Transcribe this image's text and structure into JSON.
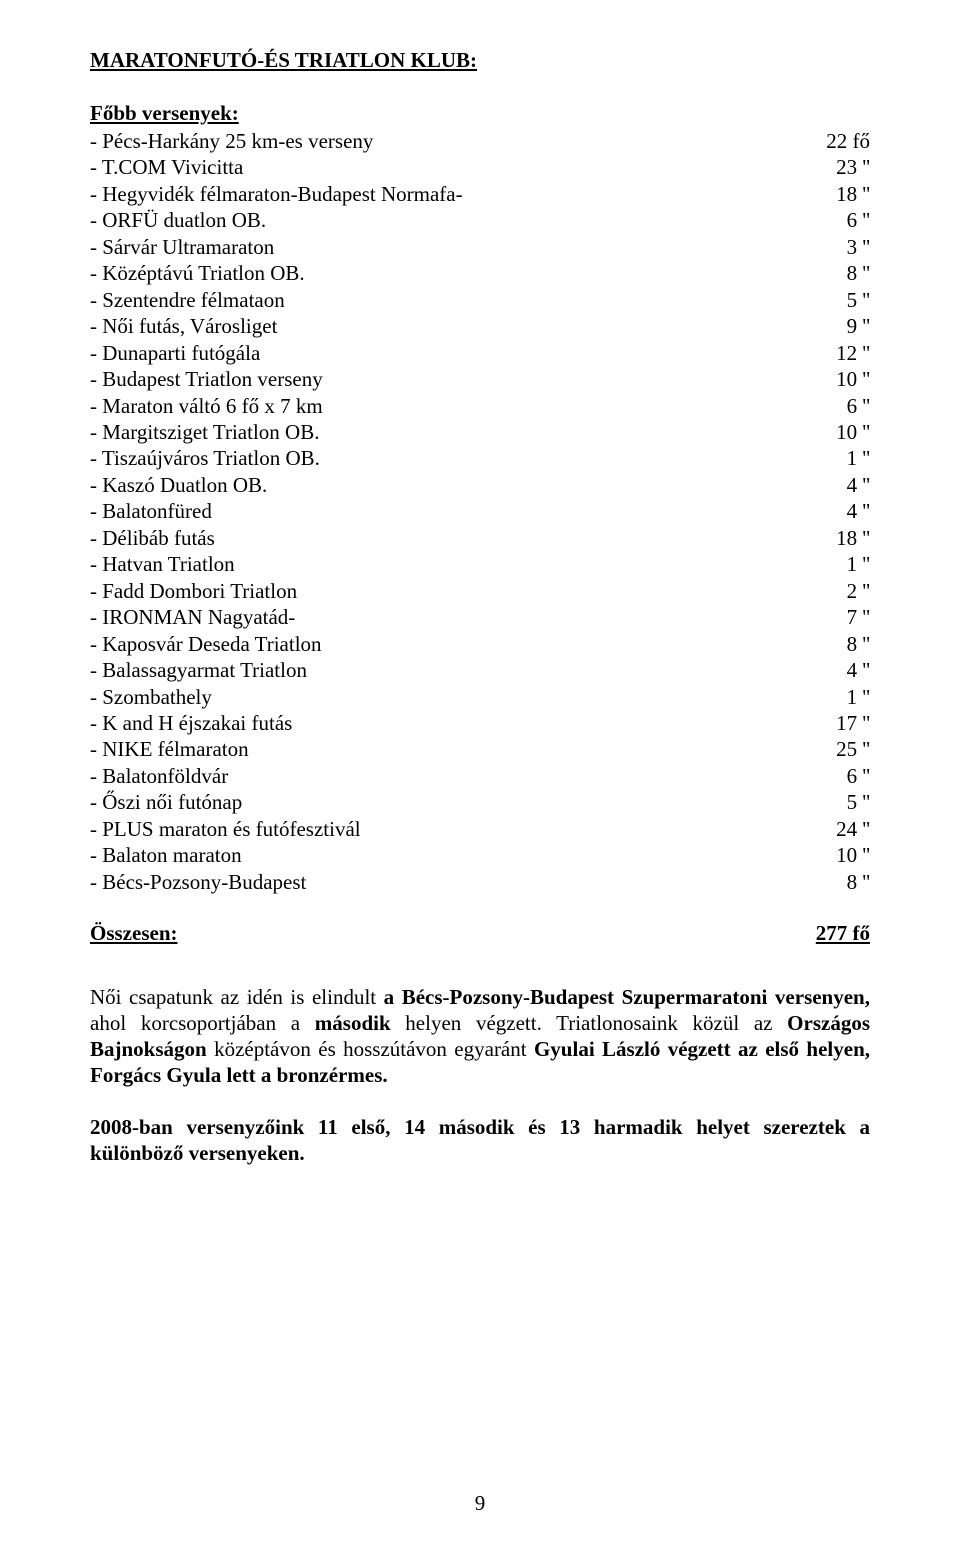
{
  "title": "MARATONFUTÓ-ÉS TRIATLON KLUB:",
  "subhead": "Főbb versenyek:",
  "events": [
    {
      "label": "- Pécs-Harkány 25 km-es verseny",
      "value": "22 fő"
    },
    {
      "label": "- T.COM Vivicitta",
      "value": "23 ''"
    },
    {
      "label": "- Hegyvidék félmaraton-Budapest Normafa-",
      "value": "18 ''"
    },
    {
      "label": "- ORFÜ duatlon OB.",
      "value": "6 ''"
    },
    {
      "label": "- Sárvár Ultramaraton",
      "value": "3 ''"
    },
    {
      "label": "- Középtávú Triatlon OB.",
      "value": "8 ''"
    },
    {
      "label": "- Szentendre félmataon",
      "value": "5 ''"
    },
    {
      "label": "- Női futás, Városliget",
      "value": "9 ''"
    },
    {
      "label": "- Dunaparti futógála",
      "value": "12 ''"
    },
    {
      "label": "- Budapest Triatlon verseny",
      "value": "10 ''"
    },
    {
      "label": "- Maraton váltó 6 fő x 7 km",
      "value": "6 ''"
    },
    {
      "label": "- Margitsziget Triatlon OB.",
      "value": "10 ''"
    },
    {
      "label": "- Tiszaújváros Triatlon OB.",
      "value": "1 ''"
    },
    {
      "label": "- Kaszó Duatlon OB.",
      "value": "4 ''"
    },
    {
      "label": "- Balatonfüred",
      "value": "4 ''"
    },
    {
      "label": "- Délibáb futás",
      "value": "18 ''"
    },
    {
      "label": "- Hatvan Triatlon",
      "value": "1 ''"
    },
    {
      "label": "- Fadd Dombori Triatlon",
      "value": "2 ''"
    },
    {
      "label": "- IRONMAN Nagyatád-",
      "value": "7 ''"
    },
    {
      "label": "- Kaposvár Deseda Triatlon",
      "value": "8 ''"
    },
    {
      "label": "- Balassagyarmat Triatlon",
      "value": "4 ''"
    },
    {
      "label": "- Szombathely",
      "value": "1 ''"
    },
    {
      "label": "- K and H éjszakai futás",
      "value": "17 ''"
    },
    {
      "label": "- NIKE félmaraton",
      "value": "25 ''"
    },
    {
      "label": "- Balatonföldvár",
      "value": "6 ''"
    },
    {
      "label": "- Őszi női futónap",
      "value": "5 ''"
    },
    {
      "label": "- PLUS maraton és futófesztivál",
      "value": "24 ''"
    },
    {
      "label": "- Balaton maraton",
      "value": "10 ''"
    },
    {
      "label": "- Bécs-Pozsony-Budapest",
      "value": "8 ''"
    }
  ],
  "total": {
    "label": "Összesen:",
    "value": "277 fő"
  },
  "para1": {
    "t1": "Női csapatunk az idén is elindult ",
    "b1": "a Bécs-Pozsony-Budapest Szupermaratoni versenyen,",
    "t2": " ahol korcsoportjában a ",
    "b2": "második",
    "t3": " helyen végzett. Triatlonosaink közül az ",
    "b3": "Országos Bajnokságon",
    "t4": " középtávon és hosszútávon egyaránt ",
    "b4": "Gyulai László végzett az első helyen, Forgács Gyula lett a bronzérmes."
  },
  "para2": "2008-ban versenyzőink 11 első, 14 második és 13 harmadik helyet szereztek a különböző versenyeken.",
  "page_number": "9"
}
